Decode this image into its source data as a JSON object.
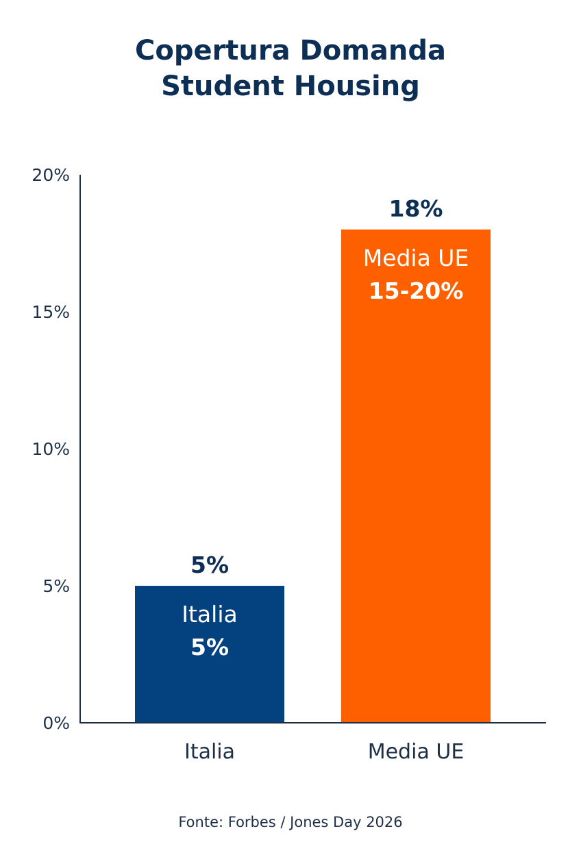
{
  "chart_data": {
    "type": "bar",
    "title": [
      "Copertura Domanda",
      "Student Housing"
    ],
    "categories": [
      "Italia",
      "Media UE"
    ],
    "values": [
      5,
      18
    ],
    "value_labels": [
      "5%",
      "18%"
    ],
    "inner_labels": [
      {
        "name": "Italia",
        "value": "5%"
      },
      {
        "name": "Media UE",
        "value": "15-20%"
      }
    ],
    "bar_colors": [
      "#04427f",
      "#fe6000"
    ],
    "ylim": [
      0,
      20
    ],
    "y_ticks": [
      0,
      5,
      10,
      15,
      20
    ],
    "y_tick_labels": [
      "0%",
      "5%",
      "10%",
      "15%",
      "20%"
    ],
    "grid": false,
    "legend": "none",
    "xlabel": "",
    "ylabel": ""
  },
  "source": "Fonte: Forbes / Jones Day 2026",
  "colors": {
    "title": "#0d2f55",
    "axis": "#1e2f48",
    "inner_text": "#ffffff"
  }
}
